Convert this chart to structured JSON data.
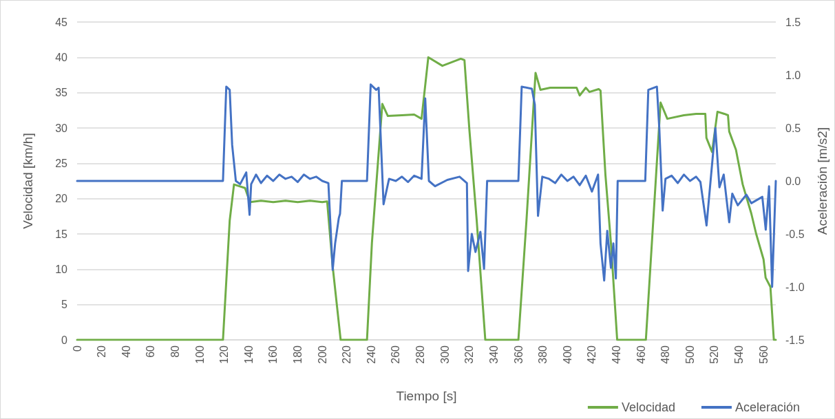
{
  "chart_data": {
    "type": "line",
    "xlabel": "Tiempo [s]",
    "ylabel": "Velocidad [km/h]",
    "y2label": "Aceleración [m/s2]",
    "xlim": [
      0,
      570
    ],
    "xticks": [
      0,
      20,
      40,
      60,
      80,
      100,
      120,
      140,
      160,
      180,
      200,
      220,
      240,
      260,
      280,
      300,
      320,
      340,
      360,
      380,
      400,
      420,
      440,
      460,
      480,
      500,
      520,
      540,
      560
    ],
    "ylim": [
      0,
      45
    ],
    "yticks": [
      0,
      5,
      10,
      15,
      20,
      25,
      30,
      35,
      40,
      45
    ],
    "y2lim": [
      -1.5,
      1.5
    ],
    "y2ticks": [
      {
        "value": -1.5,
        "label": "-1.5"
      },
      {
        "value": -1,
        "label": "-1.0"
      },
      {
        "value": -0.5,
        "label": "-0.5"
      },
      {
        "value": 0,
        "label": "0.0"
      },
      {
        "value": 0.5,
        "label": "0.5"
      },
      {
        "value": 1,
        "label": "1.0"
      },
      {
        "value": 1.5,
        "label": "1.5"
      }
    ],
    "grid": "y",
    "legend": "bottom right",
    "marker": "none",
    "line_style": "solid",
    "series": [
      {
        "name": "Velocidad",
        "color": "#70ad47",
        "x": [
          0,
          119,
          124.5,
          128,
          137,
          141,
          150,
          160,
          170,
          180,
          190,
          200,
          204,
          208.5,
          212.5,
          215,
          236.5,
          240.5,
          249,
          253.5,
          265,
          275,
          281,
          286.5,
          298,
          313,
          316,
          320,
          326,
          333,
          360,
          366.6,
          374,
          378,
          386,
          407.5,
          410,
          415,
          418,
          425.5,
          427,
          431,
          435.5,
          440.6,
          464,
          476,
          481.5,
          495,
          505,
          512.5,
          513.4,
          518,
          522.4,
          528,
          531,
          532,
          537.5,
          543,
          550,
          554,
          560,
          561.7,
          565.6,
          568.4,
          570
        ],
        "values": [
          0,
          0,
          16.9,
          22,
          21.5,
          19.5,
          19.7,
          19.5,
          19.7,
          19.5,
          19.7,
          19.5,
          19.6,
          10.4,
          4,
          0,
          0,
          13.7,
          33.4,
          31.7,
          31.8,
          31.9,
          31.3,
          40,
          38.8,
          39.8,
          39.6,
          29.8,
          16.9,
          0,
          0,
          16.9,
          37.8,
          35.4,
          35.7,
          35.7,
          34.6,
          35.7,
          35.1,
          35.5,
          35.3,
          23.4,
          13.7,
          0,
          0,
          33.6,
          31.3,
          31.8,
          32,
          32,
          28.6,
          26.6,
          32.3,
          32,
          31.8,
          29.5,
          26.9,
          22,
          17.9,
          15,
          11.4,
          8.8,
          7.5,
          0,
          0
        ]
      },
      {
        "name": "Aceleración",
        "color": "#4472c4",
        "axis": "y2",
        "x": [
          0,
          119,
          121.7,
          124.5,
          126.5,
          129.5,
          133,
          138,
          140.7,
          142,
          146,
          150,
          155,
          160,
          165,
          170,
          175,
          180,
          185,
          190,
          195,
          200,
          205,
          208.5,
          210.5,
          213.5,
          214.5,
          216,
          236.5,
          239.5,
          244,
          246,
          250,
          254.5,
          260,
          265,
          270,
          275,
          281,
          284,
          287,
          292,
          302,
          312,
          318,
          319,
          322,
          325,
          329,
          332,
          334.5,
          360,
          362.7,
          371,
          373.4,
          376,
          379.5,
          385,
          390,
          395,
          400,
          405,
          410,
          415,
          420,
          425,
          427,
          430,
          432.5,
          435.5,
          437.5,
          439.5,
          441,
          463.5,
          466,
          473,
          475,
          477.7,
          480,
          485,
          490,
          495,
          500,
          505,
          508.5,
          513.5,
          516,
          520.7,
          524,
          527.5,
          532,
          534.5,
          539,
          546,
          550,
          559,
          561.8,
          564.5,
          567,
          570
        ],
        "values": [
          0,
          0,
          0.89,
          0.86,
          0.34,
          0,
          -0.03,
          0.08,
          -0.32,
          -0.03,
          0.06,
          -0.02,
          0.05,
          0.0,
          0.06,
          0.02,
          0.04,
          -0.01,
          0.06,
          0.02,
          0.04,
          0.0,
          -0.02,
          -0.84,
          -0.59,
          -0.35,
          -0.31,
          0,
          0,
          0.91,
          0.86,
          0.88,
          -0.22,
          0.02,
          0.0,
          0.04,
          -0.01,
          0.05,
          0.02,
          0.78,
          0,
          -0.05,
          0.01,
          0.04,
          -0.02,
          -0.85,
          -0.5,
          -0.67,
          -0.48,
          -0.83,
          0,
          0,
          0.89,
          0.87,
          0.72,
          -0.33,
          0.04,
          0.02,
          -0.02,
          0.06,
          0.0,
          0.04,
          -0.04,
          0.05,
          -0.1,
          0.06,
          -0.59,
          -0.94,
          -0.47,
          -0.82,
          -0.59,
          -0.92,
          0,
          0,
          0.86,
          0.89,
          0.49,
          -0.28,
          0.02,
          0.05,
          -0.02,
          0.06,
          0.0,
          0.04,
          -0.01,
          -0.42,
          -0.1,
          0.5,
          -0.06,
          0.06,
          -0.39,
          -0.12,
          -0.23,
          -0.13,
          -0.21,
          -0.15,
          -0.46,
          -0.05,
          -1.0,
          0
        ]
      }
    ]
  }
}
